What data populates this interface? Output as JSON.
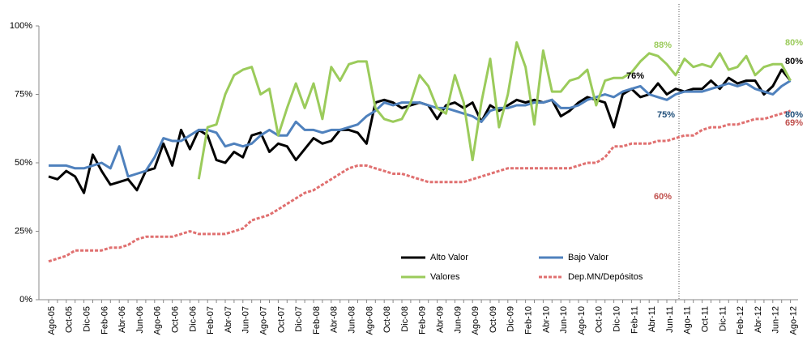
{
  "chart_data": {
    "type": "line",
    "categories": [
      "Ago-05",
      null,
      "Oct-05",
      null,
      "Dic-05",
      null,
      "Feb-06",
      null,
      "Abr-06",
      null,
      "Jun-06",
      null,
      "Ago-06",
      null,
      "Oct-06",
      null,
      "Dic-06",
      null,
      "Feb-07",
      null,
      "Abr-07",
      null,
      "Jun-07",
      null,
      "Ago-07",
      null,
      "Oct-07",
      null,
      "Dic-07",
      null,
      "Feb-08",
      null,
      "Abr-08",
      null,
      "Jun-08",
      null,
      "Ago-08",
      null,
      "Oct-08",
      null,
      "Dic-08",
      null,
      "Feb-09",
      null,
      "Abr-09",
      null,
      "Jun-09",
      null,
      "Ago-09",
      null,
      "Oct-09",
      null,
      "Dic-09",
      null,
      "Feb-10",
      null,
      "Abr-10",
      null,
      "Jun-10",
      null,
      "Ago-10",
      null,
      "Oct-10",
      null,
      "Dic-10",
      null,
      "Feb-11",
      null,
      "Abr-11",
      null,
      "Jun-11",
      null,
      "Ago-11",
      null,
      "Oct-11",
      null,
      "Dic-11",
      null,
      "Feb-12",
      null,
      "Abr-12",
      null,
      "Jun-12",
      null,
      "Ago-12"
    ],
    "series": [
      {
        "name": "Alto Valor",
        "color": "#000000",
        "dash": false,
        "values": [
          45,
          44,
          47,
          45,
          39,
          53,
          47,
          42,
          43,
          44,
          40,
          47,
          48,
          57,
          49,
          62,
          55,
          62,
          60,
          51,
          50,
          54,
          52,
          60,
          61,
          54,
          57,
          56,
          51,
          55,
          59,
          57,
          58,
          62,
          62,
          61,
          57,
          72,
          73,
          72,
          70,
          71,
          72,
          71,
          66,
          71,
          72,
          70,
          72,
          65,
          71,
          69,
          71,
          73,
          72,
          73,
          72,
          73,
          67,
          69,
          72,
          74,
          73,
          72,
          63,
          75,
          77,
          74,
          75,
          79,
          75,
          77,
          76,
          77,
          77,
          80,
          77,
          81,
          79,
          80,
          80,
          75,
          78,
          84,
          80
        ]
      },
      {
        "name": "Bajo Valor",
        "color": "#4f81bd",
        "dash": false,
        "values": [
          49,
          49,
          49,
          48,
          48,
          49,
          50,
          48,
          56,
          45,
          46,
          47,
          52,
          59,
          58,
          58,
          60,
          62,
          62,
          61,
          56,
          57,
          56,
          57,
          60,
          62,
          60,
          60,
          65,
          62,
          62,
          61,
          62,
          62,
          63,
          64,
          67,
          69,
          72,
          71,
          72,
          72,
          72,
          71,
          70,
          70,
          69,
          68,
          67,
          65,
          69,
          70,
          70,
          71,
          71,
          72,
          72,
          73,
          70,
          70,
          71,
          73,
          74,
          75,
          74,
          76,
          77,
          78,
          75,
          74,
          73,
          75,
          76,
          76,
          76,
          77,
          78,
          79,
          78,
          79,
          77,
          76,
          75,
          78,
          80
        ]
      },
      {
        "name": "Valores",
        "color": "#9bcb5b",
        "dash": false,
        "values": [
          null,
          null,
          null,
          null,
          null,
          null,
          null,
          null,
          null,
          null,
          null,
          null,
          null,
          null,
          null,
          null,
          null,
          44,
          63,
          64,
          75,
          82,
          84,
          85,
          75,
          77,
          60,
          70,
          79,
          70,
          79,
          66,
          85,
          80,
          86,
          87,
          87,
          70,
          66,
          65,
          66,
          72,
          82,
          78,
          70,
          68,
          82,
          72,
          51,
          72,
          88,
          63,
          75,
          94,
          85,
          64,
          91,
          76,
          76,
          80,
          81,
          84,
          71,
          80,
          81,
          81,
          83,
          87,
          90,
          89,
          86,
          82,
          88,
          85,
          86,
          85,
          90,
          84,
          85,
          89,
          82,
          85,
          86,
          86,
          80
        ]
      },
      {
        "name": "Dep.MN/Depósitos",
        "color": "#e07070",
        "dash": true,
        "values": [
          14,
          15,
          16,
          18,
          18,
          18,
          18,
          19,
          19,
          20,
          22,
          23,
          23,
          23,
          23,
          24,
          25,
          24,
          24,
          24,
          24,
          25,
          26,
          29,
          30,
          31,
          33,
          35,
          37,
          39,
          40,
          42,
          44,
          46,
          48,
          49,
          49,
          48,
          47,
          46,
          46,
          45,
          44,
          43,
          43,
          43,
          43,
          43,
          44,
          45,
          46,
          47,
          48,
          48,
          48,
          48,
          48,
          48,
          48,
          48,
          49,
          50,
          50,
          52,
          56,
          56,
          57,
          57,
          57,
          58,
          58,
          59,
          60,
          60,
          62,
          63,
          63,
          64,
          64,
          65,
          66,
          66,
          67,
          68,
          69
        ]
      }
    ],
    "ylim": [
      0,
      100
    ],
    "yticks": [
      {
        "value": 0,
        "label": "0%"
      },
      {
        "value": 25,
        "label": "25%"
      },
      {
        "value": 50,
        "label": "50%"
      },
      {
        "value": 75,
        "label": "75%"
      },
      {
        "value": 100,
        "label": "100%"
      }
    ],
    "grid": false,
    "annotations": [
      {
        "text": "88%",
        "color": "#9bcb5b"
      },
      {
        "text": "80%",
        "color": "#9bcb5b"
      },
      {
        "text": "80%",
        "color": "#000000"
      },
      {
        "text": "76%",
        "color": "#000000"
      },
      {
        "text": "75%",
        "color": "#1f4e79"
      },
      {
        "text": "80%",
        "color": "#1f4e79"
      },
      {
        "text": "60%",
        "color": "#c0504d"
      },
      {
        "text": "69%",
        "color": "#c0504d"
      }
    ]
  }
}
